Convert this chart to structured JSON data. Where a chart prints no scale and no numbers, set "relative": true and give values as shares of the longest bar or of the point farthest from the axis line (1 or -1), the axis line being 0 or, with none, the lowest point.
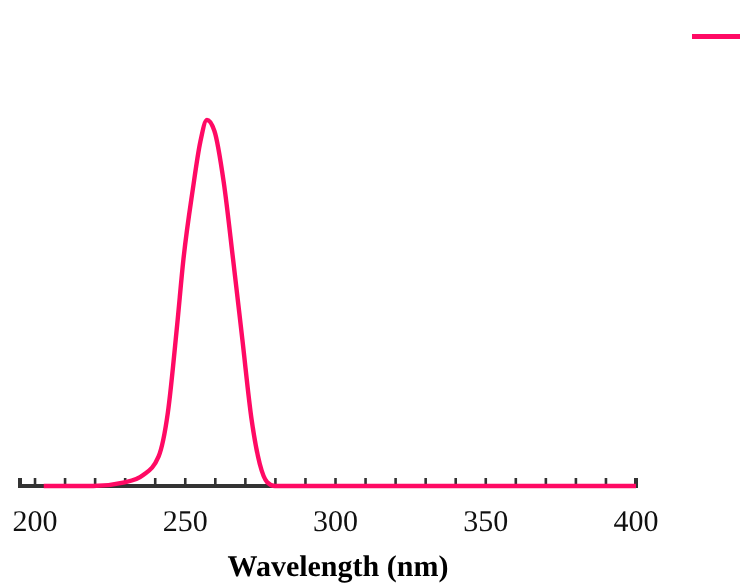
{
  "chart_data": {
    "type": "line",
    "xlabel": "Wavelength (nm)",
    "relative": true,
    "xlim": [
      195,
      400
    ],
    "xticks": [
      200,
      {
        "value": 210,
        "label": null
      },
      {
        "value": 220,
        "label": null
      },
      {
        "value": 230,
        "label": null
      },
      {
        "value": 240,
        "label": null
      },
      250,
      {
        "value": 260,
        "label": null
      },
      {
        "value": 270,
        "label": null
      },
      {
        "value": 280,
        "label": null
      },
      {
        "value": 290,
        "label": null
      },
      300,
      {
        "value": 310,
        "label": null
      },
      {
        "value": 320,
        "label": null
      },
      {
        "value": 330,
        "label": null
      },
      {
        "value": 340,
        "label": null
      },
      350,
      {
        "value": 360,
        "label": null
      },
      {
        "value": 370,
        "label": null
      },
      {
        "value": 380,
        "label": null
      },
      {
        "value": 390,
        "label": null
      },
      400
    ],
    "tick_labels": "x",
    "series": [
      {
        "color": "#ff0a64",
        "x": [
          202.9,
          219.4,
          229.8,
          236,
          241.1,
          244.2,
          247.3,
          249.4,
          252.5,
          255,
          257.2,
          259.7,
          262.8,
          265.9,
          269,
          272.1,
          274.8,
          277.3,
          279.8,
          400
        ],
        "values": [
          0,
          0,
          0.01,
          0.03,
          0.08,
          0.2,
          0.44,
          0.62,
          0.81,
          0.94,
          1,
          0.97,
          0.83,
          0.62,
          0.4,
          0.18,
          0.06,
          0.01,
          0,
          0
        ]
      }
    ]
  }
}
